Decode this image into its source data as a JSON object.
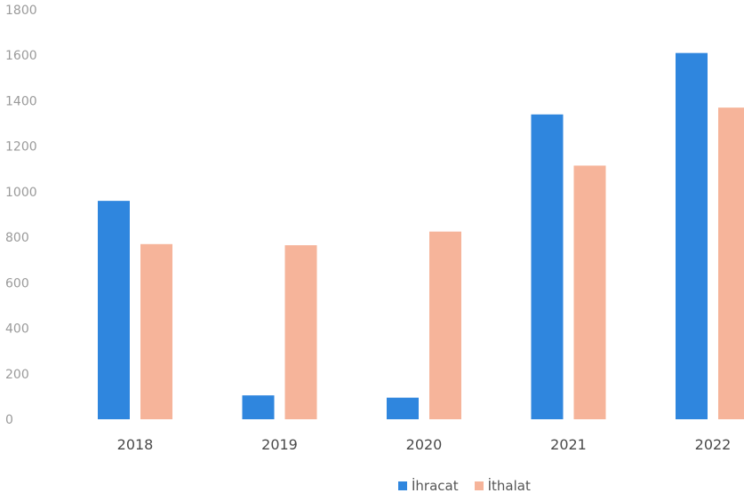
{
  "chart_data": {
    "type": "bar",
    "categories": [
      "2018",
      "2019",
      "2020",
      "2021",
      "2022"
    ],
    "series": [
      {
        "name": "İhracat",
        "color": "#2f86de",
        "values": [
          960,
          105,
          95,
          1340,
          1610
        ]
      },
      {
        "name": "İthalat",
        "color": "#f6b49a",
        "values": [
          770,
          765,
          825,
          1115,
          1370
        ]
      }
    ],
    "y_ticks": [
      "0",
      "200",
      "400",
      "600",
      "800",
      "1000",
      "1200",
      "1400",
      "1600",
      "1800"
    ],
    "ylim": [
      0,
      1800
    ],
    "grid": false,
    "legend_position": "bottom",
    "title": "",
    "xlabel": "",
    "ylabel": ""
  }
}
